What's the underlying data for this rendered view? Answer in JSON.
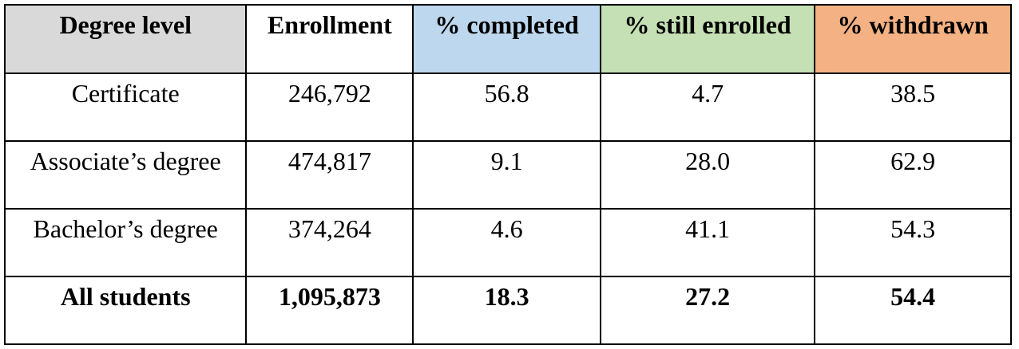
{
  "table": {
    "header": [
      "Degree level",
      "Enrollment",
      "% completed",
      "% still enrolled",
      "% withdrawn"
    ],
    "header_colors": [
      "#d9d9d9",
      "#ffffff",
      "#bdd7ee",
      "#c5e0b4",
      "#f4b183"
    ],
    "rows": [
      [
        "Certificate",
        "246,792",
        "56.8",
        "4.7",
        "38.5"
      ],
      [
        "Associate’s degree",
        "474,817",
        "9.1",
        "28.0",
        "62.9"
      ],
      [
        "Bachelor’s degree",
        "374,264",
        "4.6",
        "41.1",
        "54.3"
      ]
    ],
    "total": [
      "All students",
      "1,095,873",
      "18.3",
      "27.2",
      "54.4"
    ]
  }
}
